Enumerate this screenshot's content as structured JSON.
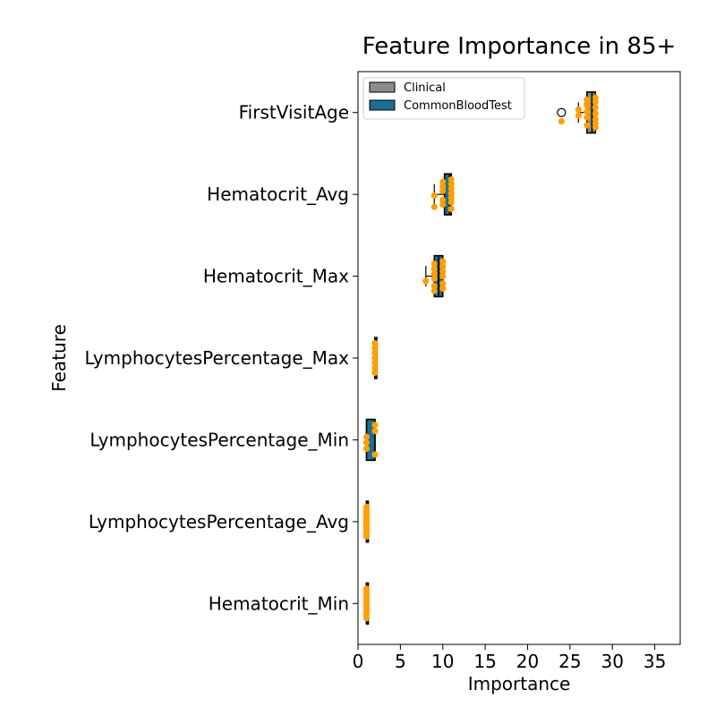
{
  "chart_data": {
    "type": "box",
    "title": "Feature Importance in 85+",
    "xlabel": "Importance",
    "ylabel": "Feature",
    "xlim": [
      0,
      38
    ],
    "xticks": [
      0,
      5,
      10,
      15,
      20,
      25,
      30,
      35
    ],
    "grid": false,
    "legend_position": "top-left",
    "legend": [
      {
        "name": "Clinical",
        "color": "#8c8c8c"
      },
      {
        "name": "CommonBloodTest",
        "color": "#1a6e96"
      }
    ],
    "point_color": "#ff9f00",
    "categories": [
      "FirstVisitAge",
      "Hematocrit_Avg",
      "Hematocrit_Max",
      "LymphocytesPercentage_Max",
      "LymphocytesPercentage_Min",
      "LymphocytesPercentage_Avg",
      "Hematocrit_Min"
    ],
    "boxes": [
      {
        "feature": "FirstVisitAge",
        "group": "Clinical",
        "whisker_low": 26,
        "q1": 27,
        "median": 27.6,
        "q3": 28,
        "whisker_high": 28,
        "outliers": [
          24
        ]
      },
      {
        "feature": "Hematocrit_Avg",
        "group": "CommonBloodTest",
        "whisker_low": 9,
        "q1": 10.2,
        "median": 10.8,
        "q3": 11,
        "whisker_high": 11,
        "outliers": []
      },
      {
        "feature": "Hematocrit_Max",
        "group": "CommonBloodTest",
        "whisker_low": 8,
        "q1": 9,
        "median": 9.5,
        "q3": 10,
        "whisker_high": 10,
        "outliers": []
      },
      {
        "feature": "LymphocytesPercentage_Max",
        "group": "CommonBloodTest",
        "whisker_low": 2,
        "q1": 2,
        "median": 2,
        "q3": 2,
        "whisker_high": 2,
        "outliers": []
      },
      {
        "feature": "LymphocytesPercentage_Min",
        "group": "CommonBloodTest",
        "whisker_low": 1,
        "q1": 1,
        "median": 2,
        "q3": 2,
        "whisker_high": 2,
        "outliers": []
      },
      {
        "feature": "LymphocytesPercentage_Avg",
        "group": "CommonBloodTest",
        "whisker_low": 1,
        "q1": 1,
        "median": 1,
        "q3": 1,
        "whisker_high": 1,
        "outliers": []
      },
      {
        "feature": "Hematocrit_Min",
        "group": "CommonBloodTest",
        "whisker_low": 1,
        "q1": 1,
        "median": 1,
        "q3": 1,
        "whisker_high": 1,
        "outliers": []
      }
    ],
    "points": [
      {
        "feature": "FirstVisitAge",
        "values": [
          28,
          27,
          28,
          27,
          27,
          28,
          26,
          27,
          28,
          26,
          27,
          28,
          24,
          28,
          27,
          28
        ]
      },
      {
        "feature": "Hematocrit_Avg",
        "values": [
          11,
          10,
          11,
          10,
          11,
          10,
          11,
          9,
          11,
          10,
          11,
          10,
          9,
          11
        ]
      },
      {
        "feature": "Hematocrit_Max",
        "values": [
          10,
          9,
          10,
          9,
          10,
          9,
          10,
          9,
          8,
          10,
          9,
          10,
          9
        ]
      },
      {
        "feature": "LymphocytesPercentage_Max",
        "values": [
          2,
          2,
          2,
          2,
          2,
          2,
          2
        ]
      },
      {
        "feature": "LymphocytesPercentage_Min",
        "values": [
          2,
          2,
          1,
          1,
          1,
          2
        ]
      },
      {
        "feature": "LymphocytesPercentage_Avg",
        "values": [
          1,
          1,
          1,
          1,
          1,
          1,
          1,
          1,
          1,
          1,
          1,
          1
        ]
      },
      {
        "feature": "Hematocrit_Min",
        "values": [
          1,
          1,
          1,
          1,
          1,
          1,
          1,
          1,
          1,
          1
        ]
      }
    ]
  }
}
